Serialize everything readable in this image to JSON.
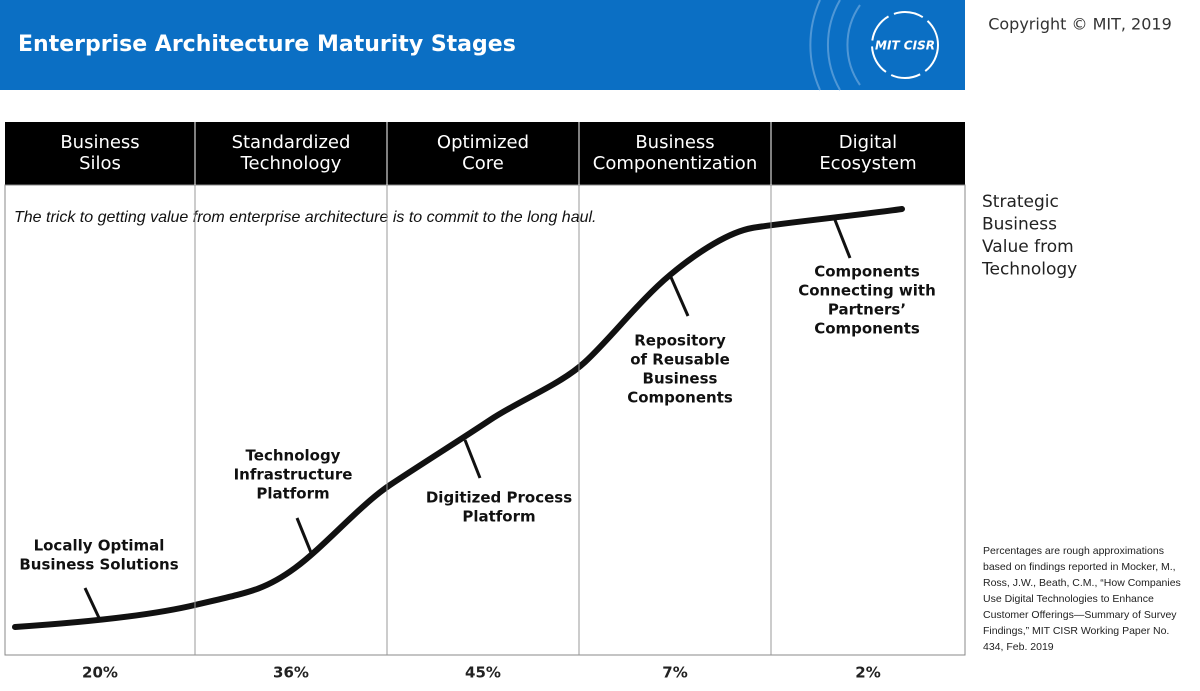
{
  "header": {
    "title": "Enterprise Architecture Maturity Stages",
    "logo": "MIT CISR",
    "copyright": "Copyright © MIT, 2019"
  },
  "stages": [
    {
      "lines": [
        "Business",
        "Silos"
      ],
      "share": "20%"
    },
    {
      "lines": [
        "Standardized",
        "Technology"
      ],
      "share": "36%"
    },
    {
      "lines": [
        "Optimized",
        "Core"
      ],
      "share": "45%"
    },
    {
      "lines": [
        "Business",
        "Componentization"
      ],
      "share": "7%"
    },
    {
      "lines": [
        "Digital",
        "Ecosystem"
      ],
      "share": "2%"
    }
  ],
  "quote": "The trick to getting value from enterprise architecture is to commit to the long haul.",
  "axis_label": [
    "Strategic",
    "Business",
    "Value from",
    "Technology"
  ],
  "milestones": [
    {
      "lines": [
        "Locally Optimal",
        "Business Solutions"
      ]
    },
    {
      "lines": [
        "Technology",
        "Infrastructure",
        "Platform"
      ]
    },
    {
      "lines": [
        "Digitized Process",
        "Platform"
      ]
    },
    {
      "lines": [
        "Repository",
        "of Reusable",
        "Business",
        "Components"
      ]
    },
    {
      "lines": [
        "Components",
        "Connecting with",
        "Partners’",
        "Components"
      ]
    }
  ],
  "note": [
    "Percentages are rough approximations",
    "based on findings reported in Mocker, M.,",
    "Ross, J.W., Beath, C.M., “How Companies",
    "Use Digital Technologies to Enhance",
    "Customer Offerings—Summary of Survey",
    "Findings,” MIT CISR Working Paper No.",
    "434, Feb. 2019"
  ]
}
